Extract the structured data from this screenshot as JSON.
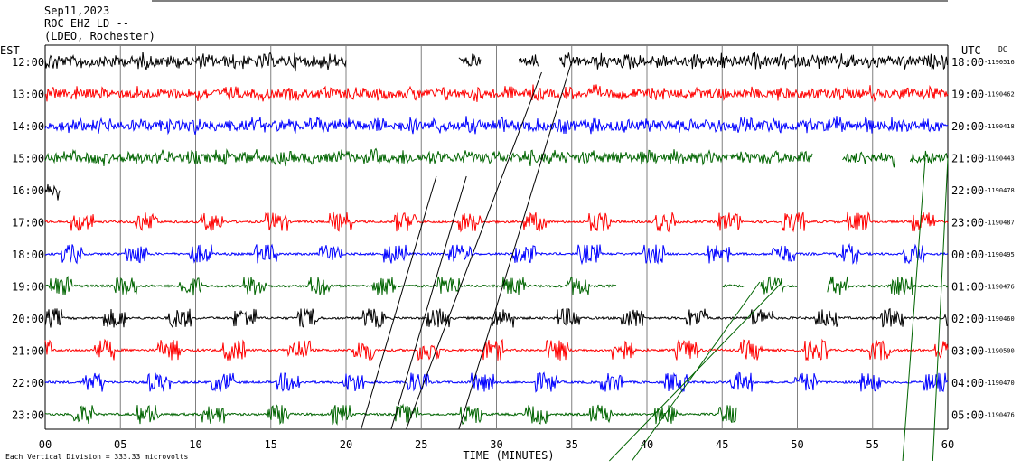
{
  "header": {
    "date": "Sep11,2023",
    "station": "ROC EHZ LD --",
    "network": "(LDEO, Rochester)"
  },
  "chart_data": {
    "type": "line",
    "subtype": "helicorder",
    "left_axis_title": "EST",
    "right_axis_title": "UTC",
    "dc_title": "DC",
    "xlabel": "TIME (MINUTES)",
    "xlim": [
      0,
      60
    ],
    "x_ticks": [
      "00",
      "05",
      "10",
      "15",
      "20",
      "25",
      "30",
      "35",
      "40",
      "45",
      "50",
      "55",
      "60"
    ],
    "footer_note": "Each Vertical Division = 333.33 microvolts",
    "trace_colors": [
      "#000000",
      "#ff0000",
      "#0000ff",
      "#006400"
    ],
    "rows": [
      {
        "est": "12:00",
        "utc": "18:00",
        "dc": "-1190516",
        "color": "#000000",
        "segments": [
          [
            0,
            20
          ],
          [
            27.5,
            29
          ],
          [
            31.5,
            32.8
          ],
          [
            34.2,
            60
          ]
        ],
        "amp": 0.34,
        "style": "noise"
      },
      {
        "est": "13:00",
        "utc": "19:00",
        "dc": "-1190462",
        "color": "#ff0000",
        "segments": [
          [
            0,
            60
          ]
        ],
        "amp": 0.3,
        "style": "noise"
      },
      {
        "est": "14:00",
        "utc": "20:00",
        "dc": "-1190418",
        "color": "#0000ff",
        "segments": [
          [
            0,
            60
          ]
        ],
        "amp": 0.34,
        "style": "noise"
      },
      {
        "est": "15:00",
        "utc": "21:00",
        "dc": "-1190443",
        "color": "#006400",
        "segments": [
          [
            0,
            51
          ],
          [
            53,
            56.5
          ],
          [
            57.5,
            60
          ]
        ],
        "amp": 0.32,
        "style": "noise"
      },
      {
        "est": "16:00",
        "utc": "22:00",
        "dc": "-1190478",
        "color": "#000000",
        "segments": [
          [
            0,
            1
          ]
        ],
        "amp": 0.55,
        "style": "noise"
      },
      {
        "est": "17:00",
        "utc": "23:00",
        "dc": "-1190487",
        "color": "#ff0000",
        "segments": [
          [
            0,
            60
          ]
        ],
        "amp": 0.3,
        "style": "bursts"
      },
      {
        "est": "18:00",
        "utc": "00:00",
        "dc": "-1190495",
        "color": "#0000ff",
        "segments": [
          [
            0,
            60
          ]
        ],
        "amp": 0.3,
        "style": "bursts"
      },
      {
        "est": "19:00",
        "utc": "01:00",
        "dc": "-1190476",
        "color": "#006400",
        "segments": [
          [
            0,
            38
          ],
          [
            45,
            46.5
          ],
          [
            47.5,
            50
          ],
          [
            52,
            60
          ]
        ],
        "amp": 0.3,
        "style": "bursts"
      },
      {
        "est": "20:00",
        "utc": "02:00",
        "dc": "-1190460",
        "color": "#000000",
        "segments": [
          [
            0,
            60
          ]
        ],
        "amp": 0.3,
        "style": "bursts"
      },
      {
        "est": "21:00",
        "utc": "03:00",
        "dc": "-1190500",
        "color": "#ff0000",
        "segments": [
          [
            0,
            60
          ]
        ],
        "amp": 0.32,
        "style": "bursts"
      },
      {
        "est": "22:00",
        "utc": "04:00",
        "dc": "-1190470",
        "color": "#0000ff",
        "segments": [
          [
            0,
            60
          ]
        ],
        "amp": 0.3,
        "style": "bursts"
      },
      {
        "est": "23:00",
        "utc": "05:00",
        "dc": "-1190476",
        "color": "#006400",
        "segments": [
          [
            0,
            46
          ]
        ],
        "amp": 0.3,
        "style": "bursts"
      }
    ]
  }
}
